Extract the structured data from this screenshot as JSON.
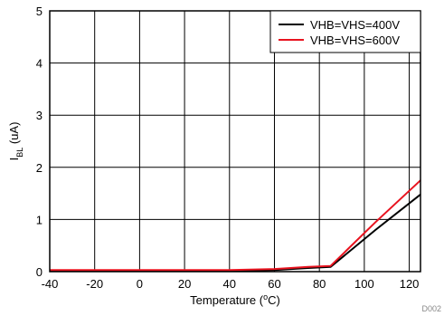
{
  "chart_data": {
    "type": "line",
    "title": "",
    "xlabel": {
      "pre": "Temperature (",
      "sup": "o",
      "post": "C)"
    },
    "ylabel": {
      "main": "I",
      "sub": "BL",
      "post": " (uA)"
    },
    "xlim": [
      -40,
      125
    ],
    "ylim": [
      0,
      5
    ],
    "xticks": [
      -40,
      -20,
      0,
      20,
      40,
      60,
      80,
      100,
      120
    ],
    "yticks": [
      0,
      1,
      2,
      3,
      4,
      5
    ],
    "grid": true,
    "legend": "top-right",
    "series": [
      {
        "name": "VHB=VHS=400V",
        "color": "#000000",
        "points": [
          [
            -40,
            0.01
          ],
          [
            0,
            0.01
          ],
          [
            40,
            0.01
          ],
          [
            60,
            0.03
          ],
          [
            75,
            0.07
          ],
          [
            85,
            0.09
          ],
          [
            105,
            0.8
          ],
          [
            125,
            1.48
          ]
        ]
      },
      {
        "name": "VHB=VHS=600V",
        "color": "#e8131f",
        "points": [
          [
            -40,
            0.03
          ],
          [
            0,
            0.03
          ],
          [
            40,
            0.03
          ],
          [
            60,
            0.05
          ],
          [
            75,
            0.09
          ],
          [
            85,
            0.11
          ],
          [
            105,
            0.95
          ],
          [
            125,
            1.75
          ]
        ]
      }
    ],
    "watermark": "D002"
  }
}
